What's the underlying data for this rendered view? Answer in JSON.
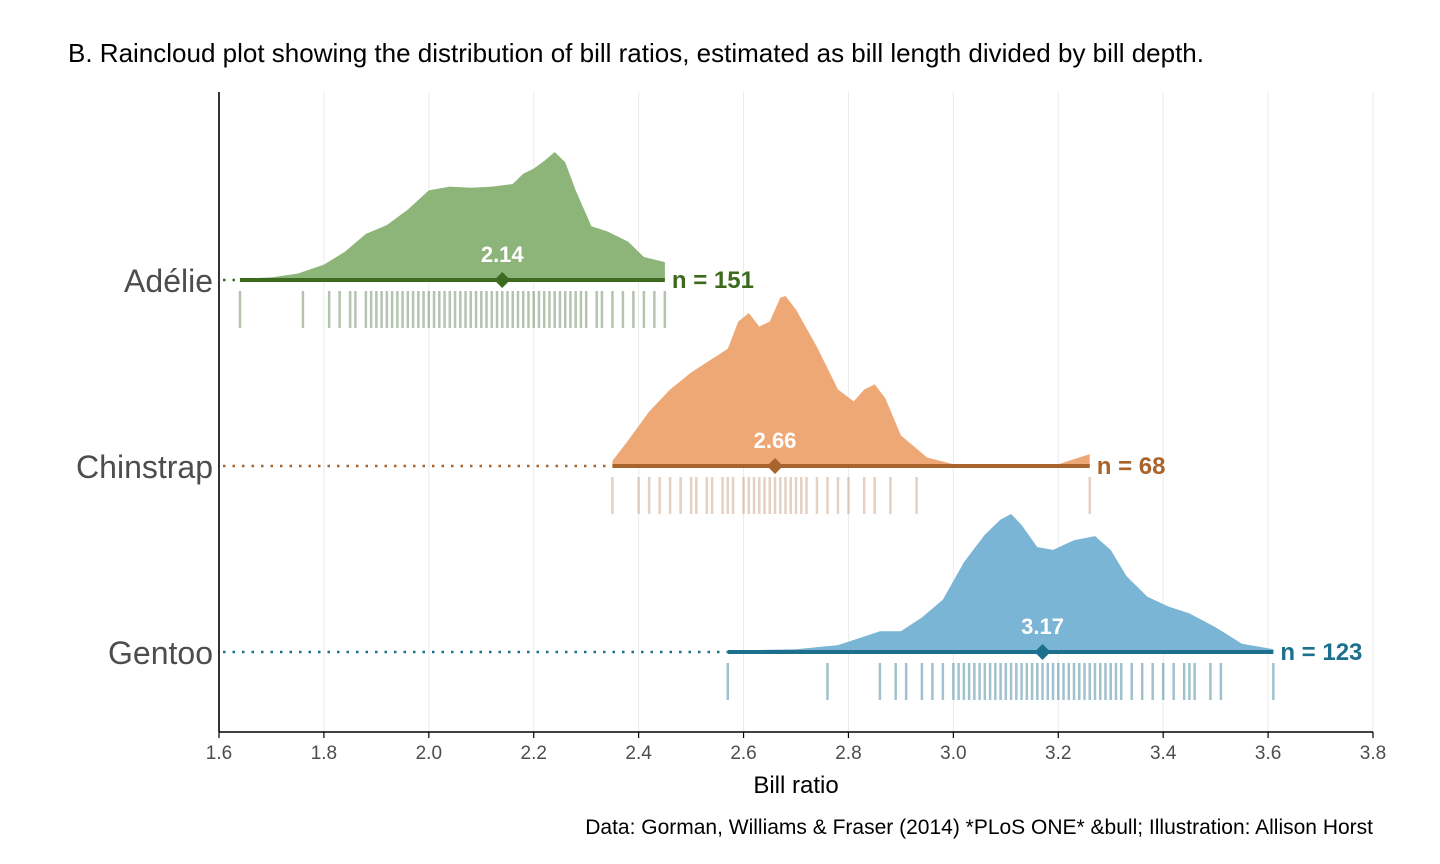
{
  "chart_data": {
    "type": "raincloud",
    "title": "B. Raincloud plot showing the distribution of bill ratios, estimated as bill length divided by bill depth.",
    "xlabel": "Bill ratio",
    "ylabel": "",
    "caption": "Data: Gorman, Williams & Fraser (2014) *PLoS ONE* &bull; Illustration: Allison Horst",
    "xlim": [
      1.6,
      3.8
    ],
    "x_ticks": [
      "1.6",
      "1.8",
      "2.0",
      "2.2",
      "2.4",
      "2.6",
      "2.8",
      "3.0",
      "3.2",
      "3.4",
      "3.6",
      "3.8"
    ],
    "grid": "vertical",
    "series": [
      {
        "name": "Adélie",
        "n_label": "n = 151",
        "median": 2.14,
        "median_label": "2.14",
        "min": 1.64,
        "max": 2.45,
        "fill_color": "#8db57a",
        "line_color": "#3c6a1e",
        "rug_color": "#5a7d52",
        "density": [
          [
            1.64,
            0.01
          ],
          [
            1.7,
            0.02
          ],
          [
            1.75,
            0.05
          ],
          [
            1.8,
            0.12
          ],
          [
            1.84,
            0.22
          ],
          [
            1.88,
            0.36
          ],
          [
            1.92,
            0.43
          ],
          [
            1.96,
            0.55
          ],
          [
            2.0,
            0.7
          ],
          [
            2.04,
            0.73
          ],
          [
            2.08,
            0.72
          ],
          [
            2.12,
            0.73
          ],
          [
            2.16,
            0.75
          ],
          [
            2.18,
            0.83
          ],
          [
            2.2,
            0.87
          ],
          [
            2.22,
            0.93
          ],
          [
            2.24,
            1.0
          ],
          [
            2.26,
            0.92
          ],
          [
            2.28,
            0.7
          ],
          [
            2.31,
            0.42
          ],
          [
            2.34,
            0.38
          ],
          [
            2.38,
            0.3
          ],
          [
            2.41,
            0.18
          ],
          [
            2.45,
            0.14
          ]
        ],
        "rug": [
          1.64,
          1.76,
          1.81,
          1.83,
          1.85,
          1.86,
          1.88,
          1.89,
          1.9,
          1.91,
          1.92,
          1.93,
          1.94,
          1.95,
          1.96,
          1.97,
          1.98,
          1.99,
          2.0,
          2.01,
          2.02,
          2.03,
          2.04,
          2.05,
          2.06,
          2.07,
          2.08,
          2.09,
          2.1,
          2.11,
          2.12,
          2.13,
          2.14,
          2.15,
          2.16,
          2.17,
          2.18,
          2.19,
          2.2,
          2.21,
          2.22,
          2.23,
          2.24,
          2.25,
          2.26,
          2.27,
          2.28,
          2.29,
          2.3,
          2.32,
          2.33,
          2.35,
          2.37,
          2.39,
          2.41,
          2.43,
          2.45
        ]
      },
      {
        "name": "Chinstrap",
        "n_label": "n = 68",
        "median": 2.66,
        "median_label": "2.66",
        "min": 2.35,
        "max": 3.26,
        "fill_color": "#eea876",
        "line_color": "#a8642a",
        "rug_color": "#c49a7a",
        "density": [
          [
            2.35,
            0.03
          ],
          [
            2.38,
            0.15
          ],
          [
            2.42,
            0.32
          ],
          [
            2.46,
            0.45
          ],
          [
            2.5,
            0.55
          ],
          [
            2.54,
            0.63
          ],
          [
            2.57,
            0.69
          ],
          [
            2.59,
            0.85
          ],
          [
            2.61,
            0.9
          ],
          [
            2.63,
            0.82
          ],
          [
            2.65,
            0.85
          ],
          [
            2.67,
            0.99
          ],
          [
            2.68,
            1.0
          ],
          [
            2.7,
            0.92
          ],
          [
            2.74,
            0.7
          ],
          [
            2.78,
            0.45
          ],
          [
            2.81,
            0.38
          ],
          [
            2.83,
            0.45
          ],
          [
            2.85,
            0.48
          ],
          [
            2.87,
            0.4
          ],
          [
            2.9,
            0.18
          ],
          [
            2.95,
            0.05
          ],
          [
            3.0,
            0.01
          ],
          [
            3.2,
            0.01
          ],
          [
            3.26,
            0.07
          ]
        ],
        "rug": [
          2.35,
          2.4,
          2.42,
          2.44,
          2.46,
          2.48,
          2.5,
          2.51,
          2.53,
          2.54,
          2.56,
          2.57,
          2.58,
          2.6,
          2.61,
          2.62,
          2.63,
          2.64,
          2.65,
          2.66,
          2.67,
          2.68,
          2.69,
          2.7,
          2.71,
          2.72,
          2.74,
          2.76,
          2.78,
          2.8,
          2.83,
          2.85,
          2.88,
          2.93,
          3.26
        ]
      },
      {
        "name": "Gentoo",
        "n_label": "n = 123",
        "median": 3.17,
        "median_label": "3.17",
        "min": 2.57,
        "max": 3.61,
        "fill_color": "#7ab5d5",
        "line_color": "#1c6f8d",
        "rug_color": "#2d7893",
        "density": [
          [
            2.57,
            0.01
          ],
          [
            2.7,
            0.02
          ],
          [
            2.78,
            0.05
          ],
          [
            2.82,
            0.1
          ],
          [
            2.86,
            0.15
          ],
          [
            2.9,
            0.15
          ],
          [
            2.94,
            0.25
          ],
          [
            2.98,
            0.38
          ],
          [
            3.02,
            0.65
          ],
          [
            3.06,
            0.85
          ],
          [
            3.09,
            0.96
          ],
          [
            3.11,
            1.0
          ],
          [
            3.13,
            0.92
          ],
          [
            3.16,
            0.76
          ],
          [
            3.19,
            0.74
          ],
          [
            3.23,
            0.81
          ],
          [
            3.27,
            0.84
          ],
          [
            3.3,
            0.74
          ],
          [
            3.33,
            0.55
          ],
          [
            3.37,
            0.4
          ],
          [
            3.41,
            0.33
          ],
          [
            3.45,
            0.28
          ],
          [
            3.5,
            0.18
          ],
          [
            3.55,
            0.06
          ],
          [
            3.61,
            0.02
          ]
        ],
        "rug": [
          2.57,
          2.76,
          2.86,
          2.89,
          2.91,
          2.94,
          2.96,
          2.98,
          3.0,
          3.01,
          3.02,
          3.03,
          3.04,
          3.05,
          3.06,
          3.07,
          3.08,
          3.09,
          3.1,
          3.11,
          3.12,
          3.13,
          3.14,
          3.15,
          3.16,
          3.17,
          3.18,
          3.19,
          3.2,
          3.21,
          3.22,
          3.23,
          3.24,
          3.25,
          3.26,
          3.27,
          3.28,
          3.29,
          3.3,
          3.31,
          3.32,
          3.34,
          3.36,
          3.38,
          3.4,
          3.42,
          3.44,
          3.45,
          3.46,
          3.49,
          3.51,
          3.61
        ]
      }
    ]
  }
}
